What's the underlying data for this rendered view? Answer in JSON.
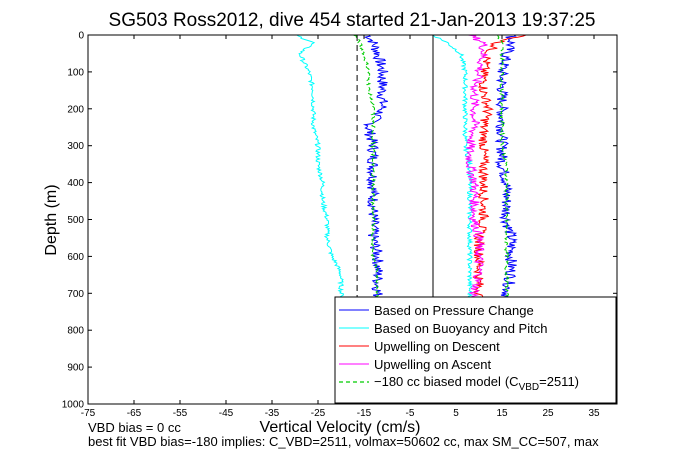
{
  "chart_data": {
    "type": "line",
    "title": "SG503 Ross2012, dive 454 started 21-Jan-2013 19:37:25",
    "xlabel": "Vertical Velocity (cm/s)",
    "ylabel": "Depth (m)",
    "xlim": [
      -75,
      40
    ],
    "ylim": [
      1000,
      0
    ],
    "y_reversed": true,
    "grid": false,
    "x_ticks": [
      "-75",
      "-65",
      "-55",
      "-45",
      "-35",
      "-25",
      "-15",
      "-5",
      "5",
      "15",
      "25",
      "35"
    ],
    "y_ticks": [
      "0",
      "100",
      "200",
      "300",
      "400",
      "500",
      "600",
      "700",
      "800",
      "900",
      "1000"
    ],
    "legend_position": "bottom-right",
    "series": [
      {
        "name": "Based on Pressure Change",
        "color": "#0000ff",
        "style": "solid",
        "depth": [
          0,
          20,
          50,
          100,
          150,
          200,
          250,
          300,
          350,
          400,
          450,
          500,
          550,
          600,
          650,
          700,
          720
        ],
        "descent": [
          -14,
          -13,
          -12,
          -11,
          -11,
          -11,
          -14,
          -13,
          -13,
          -13,
          -13,
          -13,
          -13,
          -12,
          -12,
          -12,
          -12
        ],
        "ascent": [
          17,
          17,
          16,
          15,
          15,
          15,
          15,
          15,
          15,
          16,
          16,
          16,
          17,
          17,
          17,
          16,
          16
        ]
      },
      {
        "name": "Based on Buoyancy and Pitch",
        "color": "#00ffff",
        "style": "solid",
        "depth": [
          0,
          20,
          50,
          100,
          150,
          200,
          250,
          300,
          350,
          400,
          450,
          500,
          550,
          600,
          620,
          650,
          700,
          720
        ],
        "descent": [
          -30,
          -26,
          -29,
          -27,
          -26,
          -26,
          -26,
          -25,
          -25,
          -24,
          -24,
          -23,
          -23,
          -22,
          -21,
          -20,
          -20,
          -19
        ],
        "ascent": [
          0,
          3,
          6,
          7,
          7,
          7,
          7,
          7,
          8,
          8,
          8,
          8,
          8,
          8,
          8,
          8,
          8,
          8
        ]
      },
      {
        "name": "Upwelling on Descent",
        "color": "#ff0000",
        "style": "solid",
        "depth": [
          0,
          20,
          50,
          100,
          150,
          200,
          250,
          300,
          350,
          400,
          450,
          500,
          550,
          600,
          650,
          700,
          720
        ],
        "values": [
          20,
          14,
          12,
          11,
          11,
          12,
          11,
          11,
          11,
          11,
          11,
          11,
          10,
          10,
          10,
          10,
          10
        ]
      },
      {
        "name": "Upwelling on Ascent",
        "color": "#ff00ff",
        "style": "solid",
        "depth": [
          0,
          20,
          50,
          100,
          150,
          200,
          250,
          300,
          350,
          400,
          450,
          500,
          550,
          600,
          650,
          700,
          720
        ],
        "values": [
          8,
          11,
          11,
          10,
          9,
          9,
          9,
          8,
          8,
          9,
          9,
          9,
          10,
          10,
          10,
          9,
          9
        ]
      },
      {
        "name": "−180 cc biased model",
        "color": "#00cc00",
        "style": "dashed",
        "depth": [
          0,
          20,
          50,
          100,
          150,
          200,
          250,
          300,
          350,
          400,
          450,
          500,
          550,
          600,
          650,
          700,
          720
        ],
        "descent": [
          -17,
          -16,
          -15,
          -14,
          -14,
          -13,
          -13,
          -13,
          -13,
          -13,
          -13,
          -13,
          -13,
          -13,
          -12,
          -12,
          -12
        ],
        "ascent": [
          14,
          15,
          15,
          15,
          15,
          15,
          15,
          15,
          16,
          16,
          16,
          16,
          16,
          16,
          16,
          16,
          16
        ]
      }
    ],
    "reference_lines": [
      {
        "color": "#000000",
        "style": "solid",
        "x": 0
      },
      {
        "color": "#000000",
        "style": "dashed",
        "x": -16.5
      }
    ],
    "legend_model_sub": "VBD",
    "legend_model_eq": "=2511)",
    "legend_model_prefix": "(C"
  },
  "notes": {
    "vbd_bias": "VBD bias = 0 cc",
    "best_fit": "best fit VBD bias=-180 implies: C_VBD=2511, volmax=50602 cc, max SM_CC=507, max"
  }
}
